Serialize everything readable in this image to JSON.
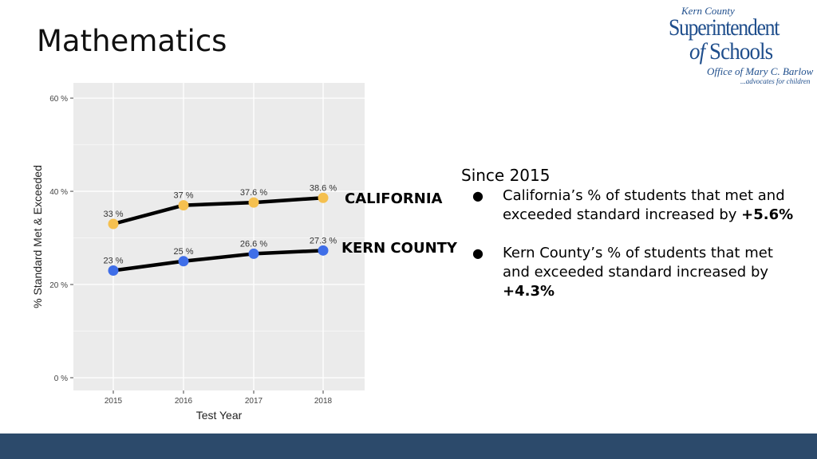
{
  "slide": {
    "title": "Mathematics"
  },
  "logo": {
    "line1": "Kern County",
    "line2": "Superintendent",
    "line3_of": "of",
    "line3_rest": " Schools",
    "line4": "Office of Mary C. Barlow",
    "line5": "...advocates for children"
  },
  "series_labels": {
    "california": "CALIFORNIA",
    "kern": "KERN COUNTY"
  },
  "summary": {
    "heading": "Since 2015",
    "bullet1_text": "California’s % of students that met and exceeded standard increased by ",
    "bullet1_value": "+5.6%",
    "bullet2_text": "Kern County’s % of students that met and exceeded standard increased by ",
    "bullet2_value": "+4.3%"
  },
  "colors": {
    "california": "#f5c04f",
    "kern": "#3f6ee8",
    "line": "#000000",
    "panel": "#ebebeb",
    "footer": "#2c4a6b"
  },
  "chart_data": {
    "type": "line",
    "title": "",
    "xlabel": "Test Year",
    "ylabel": "% Standard Met & Exceeded",
    "x": [
      "2015",
      "2016",
      "2017",
      "2018"
    ],
    "yticks": [
      "0 %",
      "20 %",
      "40 %",
      "60 %"
    ],
    "ylim": [
      0,
      62
    ],
    "grid": true,
    "series": [
      {
        "name": "CALIFORNIA",
        "values": [
          33,
          37,
          37.6,
          38.6
        ],
        "labels": [
          "33 %",
          "37 %",
          "37.6 %",
          "38.6 %"
        ],
        "color": "#f5c04f"
      },
      {
        "name": "KERN COUNTY",
        "values": [
          23,
          25,
          26.6,
          27.3
        ],
        "labels": [
          "23 %",
          "25 %",
          "26.6 %",
          "27.3 %"
        ],
        "color": "#3f6ee8"
      }
    ]
  }
}
